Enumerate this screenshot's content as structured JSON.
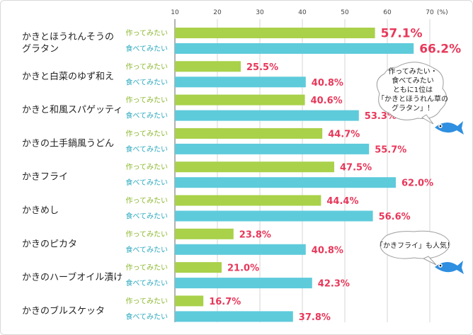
{
  "chart_data": {
    "type": "bar",
    "orientation": "horizontal",
    "x_ticks": [
      "10",
      "20",
      "30",
      "40",
      "50",
      "60",
      "70"
    ],
    "unit": "(%)",
    "xlim": [
      10,
      70
    ],
    "grid": true,
    "categories": [
      [
        "かきとほうれんそうの",
        "グラタン"
      ],
      [
        "かきと白菜のゆず和え"
      ],
      [
        "かきと和風スパゲッティ"
      ],
      [
        "かきの土手鍋風うどん"
      ],
      [
        "かきフライ"
      ],
      [
        "かきめし"
      ],
      [
        "かきのピカタ"
      ],
      [
        "かきのハーブオイル漬け"
      ],
      [
        "かきのブルスケッタ"
      ]
    ],
    "series": [
      {
        "name": "作ってみたい",
        "color": "#a9d14a",
        "values": [
          57.1,
          25.5,
          40.6,
          44.7,
          47.5,
          44.4,
          23.8,
          21.0,
          16.7
        ],
        "labels": [
          "57.1%",
          "25.5%",
          "40.6%",
          "44.7%",
          "47.5%",
          "44.4%",
          "23.8%",
          "21.0%",
          "16.7%"
        ]
      },
      {
        "name": "食べてみたい",
        "color": "#5ecbdb",
        "values": [
          66.2,
          40.8,
          53.3,
          55.7,
          62.0,
          56.6,
          40.8,
          42.3,
          37.8
        ],
        "labels": [
          "66.2%",
          "40.8%",
          "53.3%",
          "55.7%",
          "62.0%",
          "56.6%",
          "40.8%",
          "42.3%",
          "37.8%"
        ]
      }
    ],
    "value_label_color": "#e8385a",
    "annotations": [
      {
        "lines": [
          "作ってみたい・",
          "食べてみたい",
          "ともに1位は",
          "「かきとほうれん草の",
          "グラタン」！"
        ],
        "icon": "fish-icon"
      },
      {
        "lines": [
          "「かきフライ」も人気！"
        ],
        "icon": "fish-icon"
      }
    ]
  }
}
